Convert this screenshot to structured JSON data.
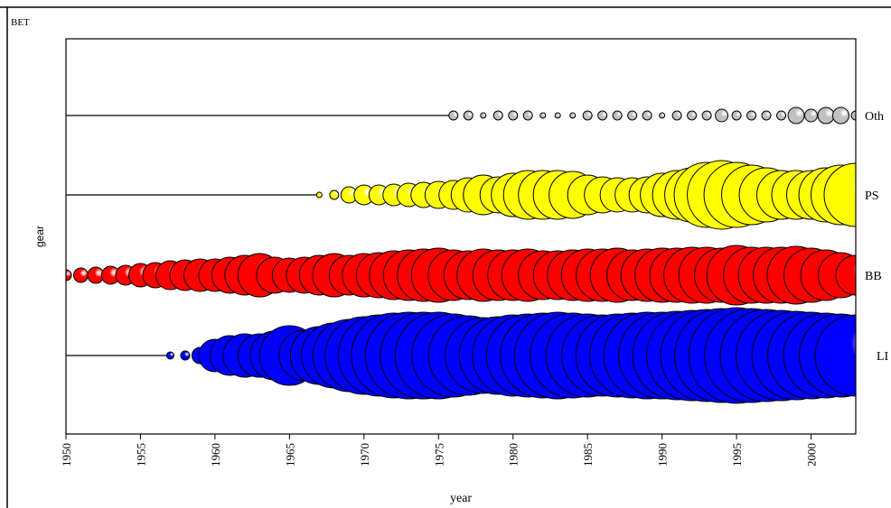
{
  "chart_data": {
    "type": "scatter",
    "subtype": "bubble",
    "title": "BET",
    "xlabel": "year",
    "ylabel": "gear",
    "xlim": [
      1950,
      2003
    ],
    "xticks": [
      1950,
      1955,
      1960,
      1965,
      1970,
      1975,
      1980,
      1985,
      1990,
      1995,
      2000
    ],
    "grid": false,
    "categories": [
      "Oth",
      "PS",
      "BB",
      "LI"
    ],
    "series": [
      {
        "name": "Oth",
        "color": "#c0c0c0",
        "x": [
          1976,
          1977,
          1978,
          1979,
          1980,
          1981,
          1982,
          1983,
          1984,
          1985,
          1986,
          1987,
          1988,
          1989,
          1990,
          1991,
          1992,
          1993,
          1994,
          1995,
          1996,
          1997,
          1998,
          1999,
          2000,
          2001,
          2002,
          2003
        ],
        "sizes": [
          5,
          5,
          3,
          5,
          5,
          5,
          3,
          3,
          3,
          5,
          5,
          5,
          5,
          5,
          3,
          5,
          5,
          5,
          7,
          5,
          5,
          5,
          5,
          9,
          7,
          9,
          9,
          5
        ]
      },
      {
        "name": "PS",
        "color": "#ffff00",
        "x": [
          1967,
          1968,
          1969,
          1970,
          1971,
          1972,
          1973,
          1974,
          1975,
          1976,
          1977,
          1978,
          1979,
          1980,
          1981,
          1982,
          1983,
          1984,
          1985,
          1986,
          1987,
          1988,
          1989,
          1990,
          1991,
          1992,
          1993,
          1994,
          1995,
          1996,
          1997,
          1998,
          1999,
          2000,
          2001,
          2002,
          2003
        ],
        "sizes": [
          3,
          5,
          9,
          11,
          11,
          12,
          13,
          14,
          15,
          16,
          19,
          22,
          20,
          24,
          27,
          27,
          27,
          26,
          22,
          20,
          19,
          19,
          20,
          24,
          27,
          30,
          36,
          38,
          36,
          33,
          30,
          27,
          27,
          27,
          30,
          33,
          35
        ]
      },
      {
        "name": "BB",
        "color": "#ff0000",
        "x": [
          1950,
          1951,
          1952,
          1953,
          1954,
          1955,
          1956,
          1957,
          1958,
          1959,
          1960,
          1961,
          1962,
          1963,
          1964,
          1965,
          1966,
          1967,
          1968,
          1969,
          1970,
          1971,
          1972,
          1973,
          1974,
          1975,
          1976,
          1977,
          1978,
          1979,
          1980,
          1981,
          1982,
          1983,
          1984,
          1985,
          1986,
          1987,
          1988,
          1989,
          1990,
          1991,
          1992,
          1993,
          1994,
          1995,
          1996,
          1997,
          1998,
          1999,
          2000,
          2001,
          2002,
          2003
        ],
        "sizes": [
          6,
          8,
          9,
          10,
          11,
          13,
          14,
          16,
          17,
          18,
          18,
          20,
          22,
          24,
          20,
          19,
          20,
          22,
          24,
          22,
          24,
          25,
          27,
          28,
          29,
          30,
          28,
          27,
          29,
          28,
          28,
          29,
          27,
          27,
          28,
          29,
          29,
          30,
          28,
          29,
          30,
          30,
          31,
          31,
          30,
          33,
          31,
          31,
          31,
          32,
          30,
          28,
          25,
          22
        ]
      },
      {
        "name": "LI",
        "color": "#0000ff",
        "x": [
          1957,
          1958,
          1959,
          1960,
          1961,
          1962,
          1963,
          1964,
          1965,
          1966,
          1967,
          1968,
          1969,
          1970,
          1971,
          1972,
          1973,
          1974,
          1975,
          1976,
          1977,
          1978,
          1979,
          1980,
          1981,
          1982,
          1983,
          1984,
          1985,
          1986,
          1987,
          1988,
          1989,
          1990,
          1991,
          1992,
          1993,
          1994,
          1995,
          1996,
          1997,
          1998,
          1999,
          2000,
          2001,
          2002,
          2003
        ],
        "sizes": [
          4,
          5,
          9,
          18,
          22,
          24,
          24,
          27,
          33,
          28,
          32,
          36,
          40,
          43,
          45,
          47,
          48,
          48,
          48,
          46,
          44,
          42,
          43,
          45,
          46,
          47,
          48,
          47,
          46,
          45,
          46,
          47,
          48,
          48,
          49,
          50,
          51,
          52,
          53,
          52,
          51,
          50,
          49,
          48,
          47,
          46,
          45
        ]
      }
    ]
  }
}
